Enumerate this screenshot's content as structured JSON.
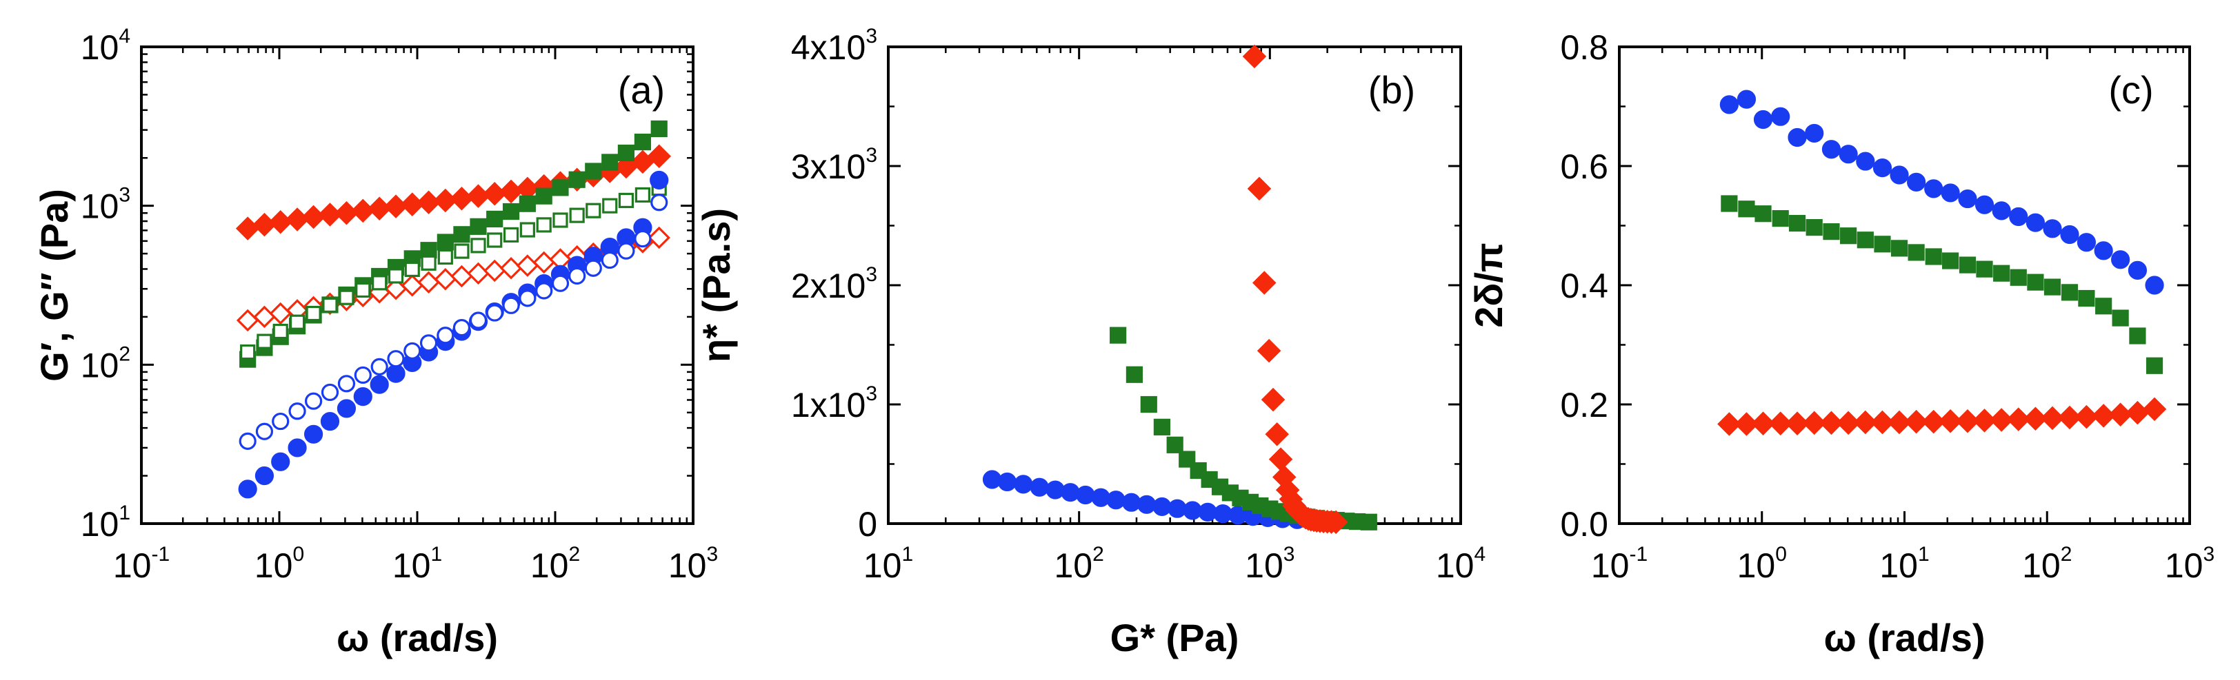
{
  "colors": {
    "blue": "#1a3cf0",
    "green": "#1f7a1f",
    "red": "#f52a0a",
    "axis": "#000000"
  },
  "chart_data": [
    {
      "panel_label": "(a)",
      "type": "scatter",
      "xscale": "log",
      "yscale": "log",
      "xlim": [
        0.1,
        1000
      ],
      "ylim": [
        10,
        10000
      ],
      "xlabel": "ω (rad/s)",
      "ylabel": "G′, G″ (Pa)",
      "x_ticks": [
        {
          "base": "10",
          "exp": "-1"
        },
        {
          "base": "10",
          "exp": "0"
        },
        {
          "base": "10",
          "exp": "1"
        },
        {
          "base": "10",
          "exp": "2"
        },
        {
          "base": "10",
          "exp": "3"
        }
      ],
      "y_ticks": [
        {
          "base": "10",
          "exp": "1"
        },
        {
          "base": "10",
          "exp": "2"
        },
        {
          "base": "10",
          "exp": "3"
        },
        {
          "base": "10",
          "exp": "4"
        }
      ],
      "series": [
        {
          "name": "G′ red",
          "color": "red",
          "marker": "diamond",
          "filled": true,
          "x": [
            0.59,
            0.78,
            1.02,
            1.35,
            1.77,
            2.33,
            3.07,
            4.04,
            5.32,
            7.0,
            9.2,
            12.1,
            16.0,
            21.0,
            27.7,
            36.4,
            47.9,
            63.0,
            82.9,
            109,
            144,
            189,
            249,
            327,
            431,
            567
          ],
          "y": [
            720,
            760,
            790,
            820,
            850,
            880,
            900,
            930,
            960,
            990,
            1020,
            1050,
            1080,
            1110,
            1150,
            1190,
            1230,
            1280,
            1330,
            1390,
            1460,
            1550,
            1650,
            1760,
            1890,
            2050
          ]
        },
        {
          "name": "G″ red",
          "color": "red",
          "marker": "diamond",
          "filled": false,
          "x": [
            0.59,
            0.78,
            1.02,
            1.35,
            1.77,
            2.33,
            3.07,
            4.04,
            5.32,
            7.0,
            9.2,
            12.1,
            16.0,
            21.0,
            27.7,
            36.4,
            47.9,
            63.0,
            82.9,
            109,
            144,
            189,
            249,
            327,
            431,
            567
          ],
          "y": [
            190,
            200,
            210,
            220,
            230,
            242,
            255,
            270,
            285,
            300,
            315,
            330,
            345,
            360,
            375,
            390,
            405,
            420,
            440,
            460,
            480,
            500,
            525,
            555,
            590,
            630
          ]
        },
        {
          "name": "G′ green",
          "color": "green",
          "marker": "square",
          "filled": true,
          "x": [
            0.59,
            0.78,
            1.02,
            1.35,
            1.77,
            2.33,
            3.07,
            4.04,
            5.32,
            7.0,
            9.2,
            12.1,
            16.0,
            21.0,
            27.7,
            36.4,
            47.9,
            63.0,
            82.9,
            109,
            144,
            189,
            249,
            327,
            431,
            567
          ],
          "y": [
            108,
            128,
            150,
            175,
            205,
            238,
            275,
            315,
            360,
            410,
            465,
            525,
            590,
            660,
            740,
            825,
            920,
            1030,
            1150,
            1300,
            1460,
            1650,
            1880,
            2150,
            2520,
            3050
          ]
        },
        {
          "name": "G″ green",
          "color": "green",
          "marker": "square",
          "filled": false,
          "x": [
            0.59,
            0.78,
            1.02,
            1.35,
            1.77,
            2.33,
            3.07,
            4.04,
            5.32,
            7.0,
            9.2,
            12.1,
            16.0,
            21.0,
            27.7,
            36.4,
            47.9,
            63.0,
            82.9,
            109,
            144,
            189,
            249,
            327,
            431,
            567
          ],
          "y": [
            120,
            140,
            162,
            185,
            210,
            237,
            265,
            295,
            328,
            362,
            398,
            436,
            476,
            518,
            562,
            608,
            656,
            706,
            758,
            812,
            870,
            932,
            1000,
            1080,
            1170,
            1290
          ]
        },
        {
          "name": "G′ blue",
          "color": "blue",
          "marker": "circle",
          "filled": true,
          "x": [
            0.59,
            0.78,
            1.02,
            1.35,
            1.77,
            2.33,
            3.07,
            4.04,
            5.32,
            7.0,
            9.2,
            12.1,
            16.0,
            21.0,
            27.7,
            36.4,
            47.9,
            63.0,
            82.9,
            109,
            144,
            189,
            249,
            327,
            431,
            567
          ],
          "y": [
            16.5,
            20,
            24.5,
            30,
            36.5,
            44,
            53,
            63,
            75,
            88,
            103,
            120,
            140,
            162,
            187,
            215,
            247,
            283,
            324,
            370,
            422,
            482,
            550,
            630,
            730,
            1450
          ]
        },
        {
          "name": "G″ blue",
          "color": "blue",
          "marker": "circle",
          "filled": false,
          "x": [
            0.59,
            0.78,
            1.02,
            1.35,
            1.77,
            2.33,
            3.07,
            4.04,
            5.32,
            7.0,
            9.2,
            12.1,
            16.0,
            21.0,
            27.7,
            36.4,
            47.9,
            63.0,
            82.9,
            109,
            144,
            189,
            249,
            327,
            431,
            567
          ],
          "y": [
            33,
            38,
            44,
            51,
            59,
            67,
            76,
            86,
            97,
            109,
            122,
            137,
            153,
            171,
            190,
            212,
            236,
            262,
            292,
            325,
            362,
            405,
            455,
            520,
            620,
            1050
          ]
        }
      ]
    },
    {
      "panel_label": "(b)",
      "type": "scatter",
      "xscale": "log",
      "yscale": "linear",
      "xlim": [
        10,
        10000
      ],
      "ylim": [
        0,
        4000
      ],
      "xlabel": "G* (Pa)",
      "ylabel": "η* (Pa.s)",
      "x_ticks": [
        {
          "base": "10",
          "exp": "1"
        },
        {
          "base": "10",
          "exp": "2"
        },
        {
          "base": "10",
          "exp": "3"
        },
        {
          "base": "10",
          "exp": "4"
        }
      ],
      "y_ticks": [
        {
          "base": "0",
          "exp": ""
        },
        {
          "base": "1x10",
          "exp": "3"
        },
        {
          "base": "2x10",
          "exp": "3"
        },
        {
          "base": "3x10",
          "exp": "3"
        },
        {
          "base": "4x10",
          "exp": "3"
        }
      ],
      "series": [
        {
          "name": "blue",
          "color": "blue",
          "marker": "circle",
          "filled": true,
          "x": [
            35,
            42,
            51,
            62,
            75,
            90,
            108,
            130,
            156,
            188,
            226,
            272,
            327,
            393,
            472,
            567,
            680,
            815,
            975,
            1165,
            1390,
            1650,
            1950
          ],
          "y": [
            370,
            350,
            330,
            305,
            283,
            262,
            240,
            218,
            198,
            178,
            160,
            142,
            126,
            110,
            96,
            83,
            71,
            60,
            50,
            41,
            33,
            26,
            20
          ]
        },
        {
          "name": "green",
          "color": "green",
          "marker": "square",
          "filled": true,
          "x": [
            160,
            195,
            232,
            272,
            318,
            368,
            422,
            482,
            548,
            620,
            700,
            790,
            890,
            1000,
            1120,
            1250,
            1400,
            1570,
            1760,
            1980,
            2230,
            2520,
            2870,
            3300
          ],
          "y": [
            1580,
            1250,
            1000,
            810,
            660,
            540,
            445,
            370,
            308,
            258,
            215,
            180,
            150,
            124,
            102,
            84,
            68,
            55,
            44,
            35,
            28,
            22,
            17,
            13
          ]
        },
        {
          "name": "red",
          "color": "red",
          "marker": "diamond",
          "filled": true,
          "x": [
            830,
            880,
            935,
            990,
            1040,
            1090,
            1140,
            1190,
            1240,
            1290,
            1340,
            1390,
            1440,
            1490,
            1540,
            1590,
            1640,
            1700,
            1760,
            1830,
            1910,
            2000,
            2100,
            2220
          ],
          "y": [
            3920,
            2810,
            2020,
            1450,
            1040,
            750,
            540,
            390,
            282,
            205,
            150,
            112,
            84,
            64,
            50,
            40,
            33,
            28,
            24,
            21,
            18,
            16,
            14,
            12
          ]
        }
      ]
    },
    {
      "panel_label": "(c)",
      "type": "scatter",
      "xscale": "log",
      "yscale": "linear",
      "xlim": [
        0.1,
        1000
      ],
      "ylim": [
        0,
        0.8
      ],
      "xlabel": "ω (rad/s)",
      "ylabel": "2δ/π",
      "x_ticks": [
        {
          "base": "10",
          "exp": "-1"
        },
        {
          "base": "10",
          "exp": "0"
        },
        {
          "base": "10",
          "exp": "1"
        },
        {
          "base": "10",
          "exp": "2"
        },
        {
          "base": "10",
          "exp": "3"
        }
      ],
      "y_ticks": [
        {
          "base": "0.0",
          "exp": ""
        },
        {
          "base": "0.2",
          "exp": ""
        },
        {
          "base": "0.4",
          "exp": ""
        },
        {
          "base": "0.6",
          "exp": ""
        },
        {
          "base": "0.8",
          "exp": ""
        }
      ],
      "series": [
        {
          "name": "blue",
          "color": "blue",
          "marker": "circle",
          "filled": true,
          "x": [
            0.59,
            0.78,
            1.02,
            1.35,
            1.77,
            2.33,
            3.07,
            4.04,
            5.32,
            7.0,
            9.2,
            12.1,
            16.0,
            21.0,
            27.7,
            36.4,
            47.9,
            63.0,
            82.9,
            109,
            144,
            189,
            249,
            327,
            431,
            567
          ],
          "y": [
            0.703,
            0.712,
            0.678,
            0.683,
            0.648,
            0.655,
            0.628,
            0.62,
            0.608,
            0.597,
            0.585,
            0.573,
            0.562,
            0.555,
            0.545,
            0.535,
            0.525,
            0.515,
            0.505,
            0.495,
            0.485,
            0.472,
            0.458,
            0.443,
            0.425,
            0.4
          ]
        },
        {
          "name": "green",
          "color": "green",
          "marker": "square",
          "filled": true,
          "x": [
            0.59,
            0.78,
            1.02,
            1.35,
            1.77,
            2.33,
            3.07,
            4.04,
            5.32,
            7.0,
            9.2,
            12.1,
            16.0,
            21.0,
            27.7,
            36.4,
            47.9,
            63.0,
            82.9,
            109,
            144,
            189,
            249,
            327,
            431,
            567
          ],
          "y": [
            0.537,
            0.528,
            0.52,
            0.512,
            0.504,
            0.497,
            0.49,
            0.483,
            0.476,
            0.469,
            0.462,
            0.455,
            0.448,
            0.441,
            0.434,
            0.427,
            0.42,
            0.413,
            0.405,
            0.397,
            0.388,
            0.378,
            0.365,
            0.345,
            0.315,
            0.265
          ]
        },
        {
          "name": "red",
          "color": "red",
          "marker": "diamond",
          "filled": true,
          "x": [
            0.59,
            0.78,
            1.02,
            1.35,
            1.77,
            2.33,
            3.07,
            4.04,
            5.32,
            7.0,
            9.2,
            12.1,
            16.0,
            21.0,
            27.7,
            36.4,
            47.9,
            63.0,
            82.9,
            109,
            144,
            189,
            249,
            327,
            431,
            567
          ],
          "y": [
            0.167,
            0.167,
            0.168,
            0.168,
            0.168,
            0.169,
            0.169,
            0.169,
            0.17,
            0.17,
            0.17,
            0.171,
            0.171,
            0.172,
            0.172,
            0.173,
            0.174,
            0.175,
            0.176,
            0.177,
            0.178,
            0.179,
            0.181,
            0.183,
            0.186,
            0.192
          ]
        }
      ]
    }
  ]
}
